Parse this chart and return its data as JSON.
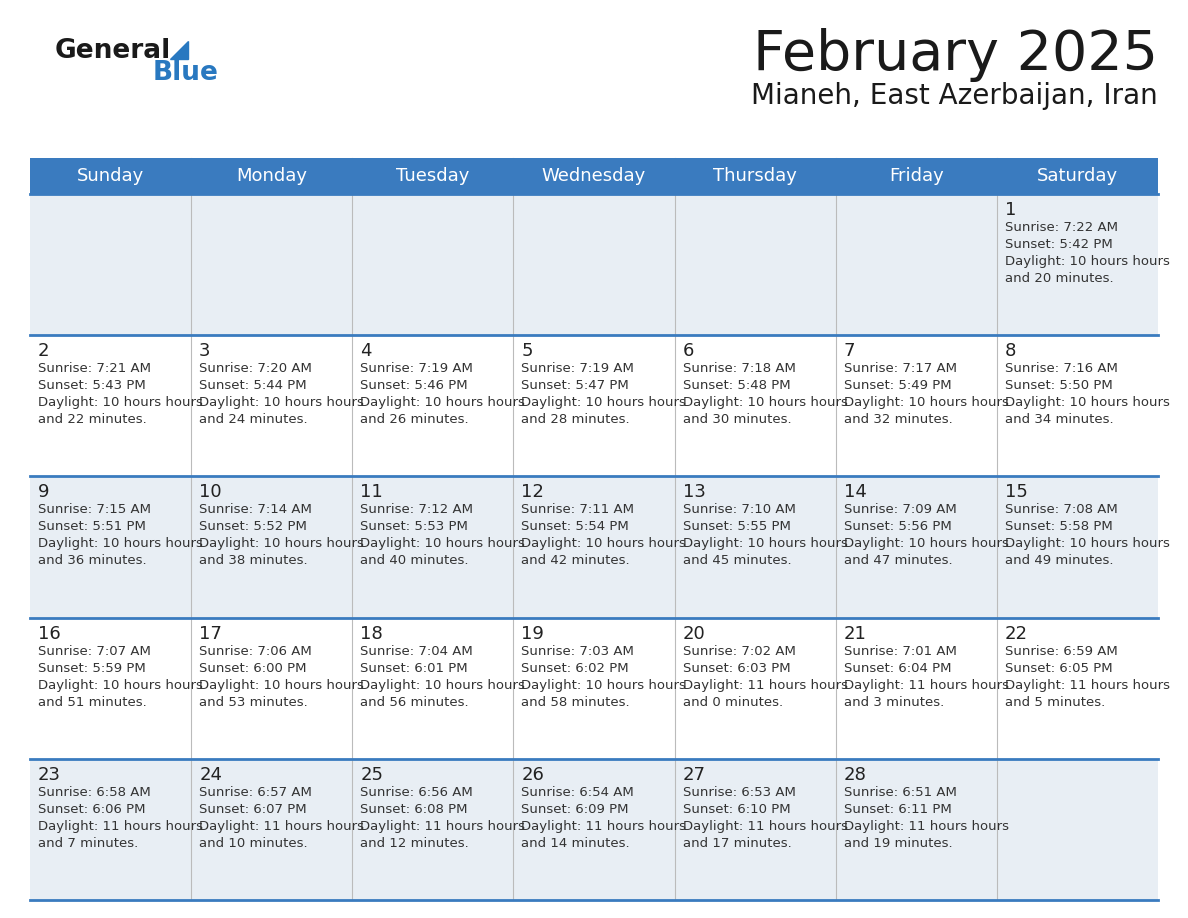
{
  "title": "February 2025",
  "subtitle": "Mianeh, East Azerbaijan, Iran",
  "days_of_week": [
    "Sunday",
    "Monday",
    "Tuesday",
    "Wednesday",
    "Thursday",
    "Friday",
    "Saturday"
  ],
  "header_bg": "#3a7bbf",
  "header_text": "#ffffff",
  "cell_bg_odd": "#e8eef4",
  "cell_bg_even": "#ffffff",
  "separator_color": "#3a7bbf",
  "text_color": "#333333",
  "calendar_data": [
    [
      null,
      null,
      null,
      null,
      null,
      null,
      {
        "day": 1,
        "sunrise": "7:22 AM",
        "sunset": "5:42 PM",
        "daylight": "10 hours and 20 minutes."
      }
    ],
    [
      {
        "day": 2,
        "sunrise": "7:21 AM",
        "sunset": "5:43 PM",
        "daylight": "10 hours and 22 minutes."
      },
      {
        "day": 3,
        "sunrise": "7:20 AM",
        "sunset": "5:44 PM",
        "daylight": "10 hours and 24 minutes."
      },
      {
        "day": 4,
        "sunrise": "7:19 AM",
        "sunset": "5:46 PM",
        "daylight": "10 hours and 26 minutes."
      },
      {
        "day": 5,
        "sunrise": "7:19 AM",
        "sunset": "5:47 PM",
        "daylight": "10 hours and 28 minutes."
      },
      {
        "day": 6,
        "sunrise": "7:18 AM",
        "sunset": "5:48 PM",
        "daylight": "10 hours and 30 minutes."
      },
      {
        "day": 7,
        "sunrise": "7:17 AM",
        "sunset": "5:49 PM",
        "daylight": "10 hours and 32 minutes."
      },
      {
        "day": 8,
        "sunrise": "7:16 AM",
        "sunset": "5:50 PM",
        "daylight": "10 hours and 34 minutes."
      }
    ],
    [
      {
        "day": 9,
        "sunrise": "7:15 AM",
        "sunset": "5:51 PM",
        "daylight": "10 hours and 36 minutes."
      },
      {
        "day": 10,
        "sunrise": "7:14 AM",
        "sunset": "5:52 PM",
        "daylight": "10 hours and 38 minutes."
      },
      {
        "day": 11,
        "sunrise": "7:12 AM",
        "sunset": "5:53 PM",
        "daylight": "10 hours and 40 minutes."
      },
      {
        "day": 12,
        "sunrise": "7:11 AM",
        "sunset": "5:54 PM",
        "daylight": "10 hours and 42 minutes."
      },
      {
        "day": 13,
        "sunrise": "7:10 AM",
        "sunset": "5:55 PM",
        "daylight": "10 hours and 45 minutes."
      },
      {
        "day": 14,
        "sunrise": "7:09 AM",
        "sunset": "5:56 PM",
        "daylight": "10 hours and 47 minutes."
      },
      {
        "day": 15,
        "sunrise": "7:08 AM",
        "sunset": "5:58 PM",
        "daylight": "10 hours and 49 minutes."
      }
    ],
    [
      {
        "day": 16,
        "sunrise": "7:07 AM",
        "sunset": "5:59 PM",
        "daylight": "10 hours and 51 minutes."
      },
      {
        "day": 17,
        "sunrise": "7:06 AM",
        "sunset": "6:00 PM",
        "daylight": "10 hours and 53 minutes."
      },
      {
        "day": 18,
        "sunrise": "7:04 AM",
        "sunset": "6:01 PM",
        "daylight": "10 hours and 56 minutes."
      },
      {
        "day": 19,
        "sunrise": "7:03 AM",
        "sunset": "6:02 PM",
        "daylight": "10 hours and 58 minutes."
      },
      {
        "day": 20,
        "sunrise": "7:02 AM",
        "sunset": "6:03 PM",
        "daylight": "11 hours and 0 minutes."
      },
      {
        "day": 21,
        "sunrise": "7:01 AM",
        "sunset": "6:04 PM",
        "daylight": "11 hours and 3 minutes."
      },
      {
        "day": 22,
        "sunrise": "6:59 AM",
        "sunset": "6:05 PM",
        "daylight": "11 hours and 5 minutes."
      }
    ],
    [
      {
        "day": 23,
        "sunrise": "6:58 AM",
        "sunset": "6:06 PM",
        "daylight": "11 hours and 7 minutes."
      },
      {
        "day": 24,
        "sunrise": "6:57 AM",
        "sunset": "6:07 PM",
        "daylight": "11 hours and 10 minutes."
      },
      {
        "day": 25,
        "sunrise": "6:56 AM",
        "sunset": "6:08 PM",
        "daylight": "11 hours and 12 minutes."
      },
      {
        "day": 26,
        "sunrise": "6:54 AM",
        "sunset": "6:09 PM",
        "daylight": "11 hours and 14 minutes."
      },
      {
        "day": 27,
        "sunrise": "6:53 AM",
        "sunset": "6:10 PM",
        "daylight": "11 hours and 17 minutes."
      },
      {
        "day": 28,
        "sunrise": "6:51 AM",
        "sunset": "6:11 PM",
        "daylight": "11 hours and 19 minutes."
      },
      null
    ]
  ],
  "logo_general_color": "#1a1a1a",
  "logo_blue_color": "#2878c0",
  "logo_triangle_color": "#2878c0",
  "fig_width": 11.88,
  "fig_height": 9.18,
  "dpi": 100
}
